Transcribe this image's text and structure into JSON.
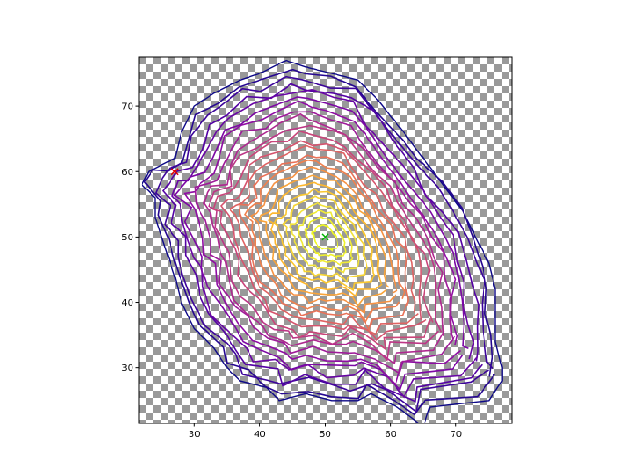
{
  "chart_data": {
    "type": "line",
    "title": "",
    "xlabel": "",
    "ylabel": "",
    "xlim": [
      21.5,
      78.5
    ],
    "ylim": [
      21.5,
      77.5
    ],
    "xticks": [
      30,
      40,
      50,
      60,
      70
    ],
    "yticks": [
      30,
      40,
      50,
      60,
      70
    ],
    "xtick_labels": [
      "30",
      "40",
      "50",
      "60",
      "70"
    ],
    "ytick_labels": [
      "30",
      "40",
      "50",
      "60",
      "70"
    ],
    "grid": false,
    "legend": "none",
    "background": "transparency-checkerboard",
    "colormap": "plasma",
    "center": [
      50,
      50
    ],
    "ring_count": 24,
    "series": [
      {
        "values": [
          [
            77,
            28
          ],
          [
            75,
            25
          ],
          [
            66,
            24
          ],
          [
            65,
            21
          ],
          [
            61,
            24
          ],
          [
            57,
            26
          ],
          [
            55,
            25
          ],
          [
            51,
            25
          ],
          [
            47,
            26
          ],
          [
            43,
            25
          ],
          [
            41,
            27
          ],
          [
            37,
            28
          ],
          [
            35,
            30
          ],
          [
            33,
            33
          ],
          [
            30,
            36
          ],
          [
            28,
            40
          ],
          [
            27,
            44
          ],
          [
            26,
            47
          ],
          [
            25,
            50
          ],
          [
            24,
            53
          ],
          [
            24,
            56
          ],
          [
            22,
            58
          ],
          [
            23,
            60
          ],
          [
            25,
            61
          ],
          [
            27,
            62
          ],
          [
            28,
            66
          ],
          [
            30,
            70
          ],
          [
            33,
            72
          ],
          [
            37,
            74
          ],
          [
            40,
            75
          ],
          [
            44,
            77
          ],
          [
            47,
            76
          ],
          [
            51,
            75
          ],
          [
            55,
            74
          ],
          [
            58,
            71
          ],
          [
            62,
            66
          ],
          [
            65,
            62
          ],
          [
            68,
            58
          ],
          [
            71,
            54
          ],
          [
            73,
            50
          ],
          [
            75,
            46
          ],
          [
            76,
            42
          ],
          [
            76,
            38
          ],
          [
            76,
            34
          ],
          [
            77,
            30
          ],
          [
            77,
            28
          ]
        ]
      }
    ],
    "markers": [
      {
        "x": 50,
        "y": 50,
        "symbol": "x",
        "color": "#00b400"
      },
      {
        "x": 27,
        "y": 60,
        "symbol": "x",
        "color": "#e00000"
      }
    ]
  }
}
